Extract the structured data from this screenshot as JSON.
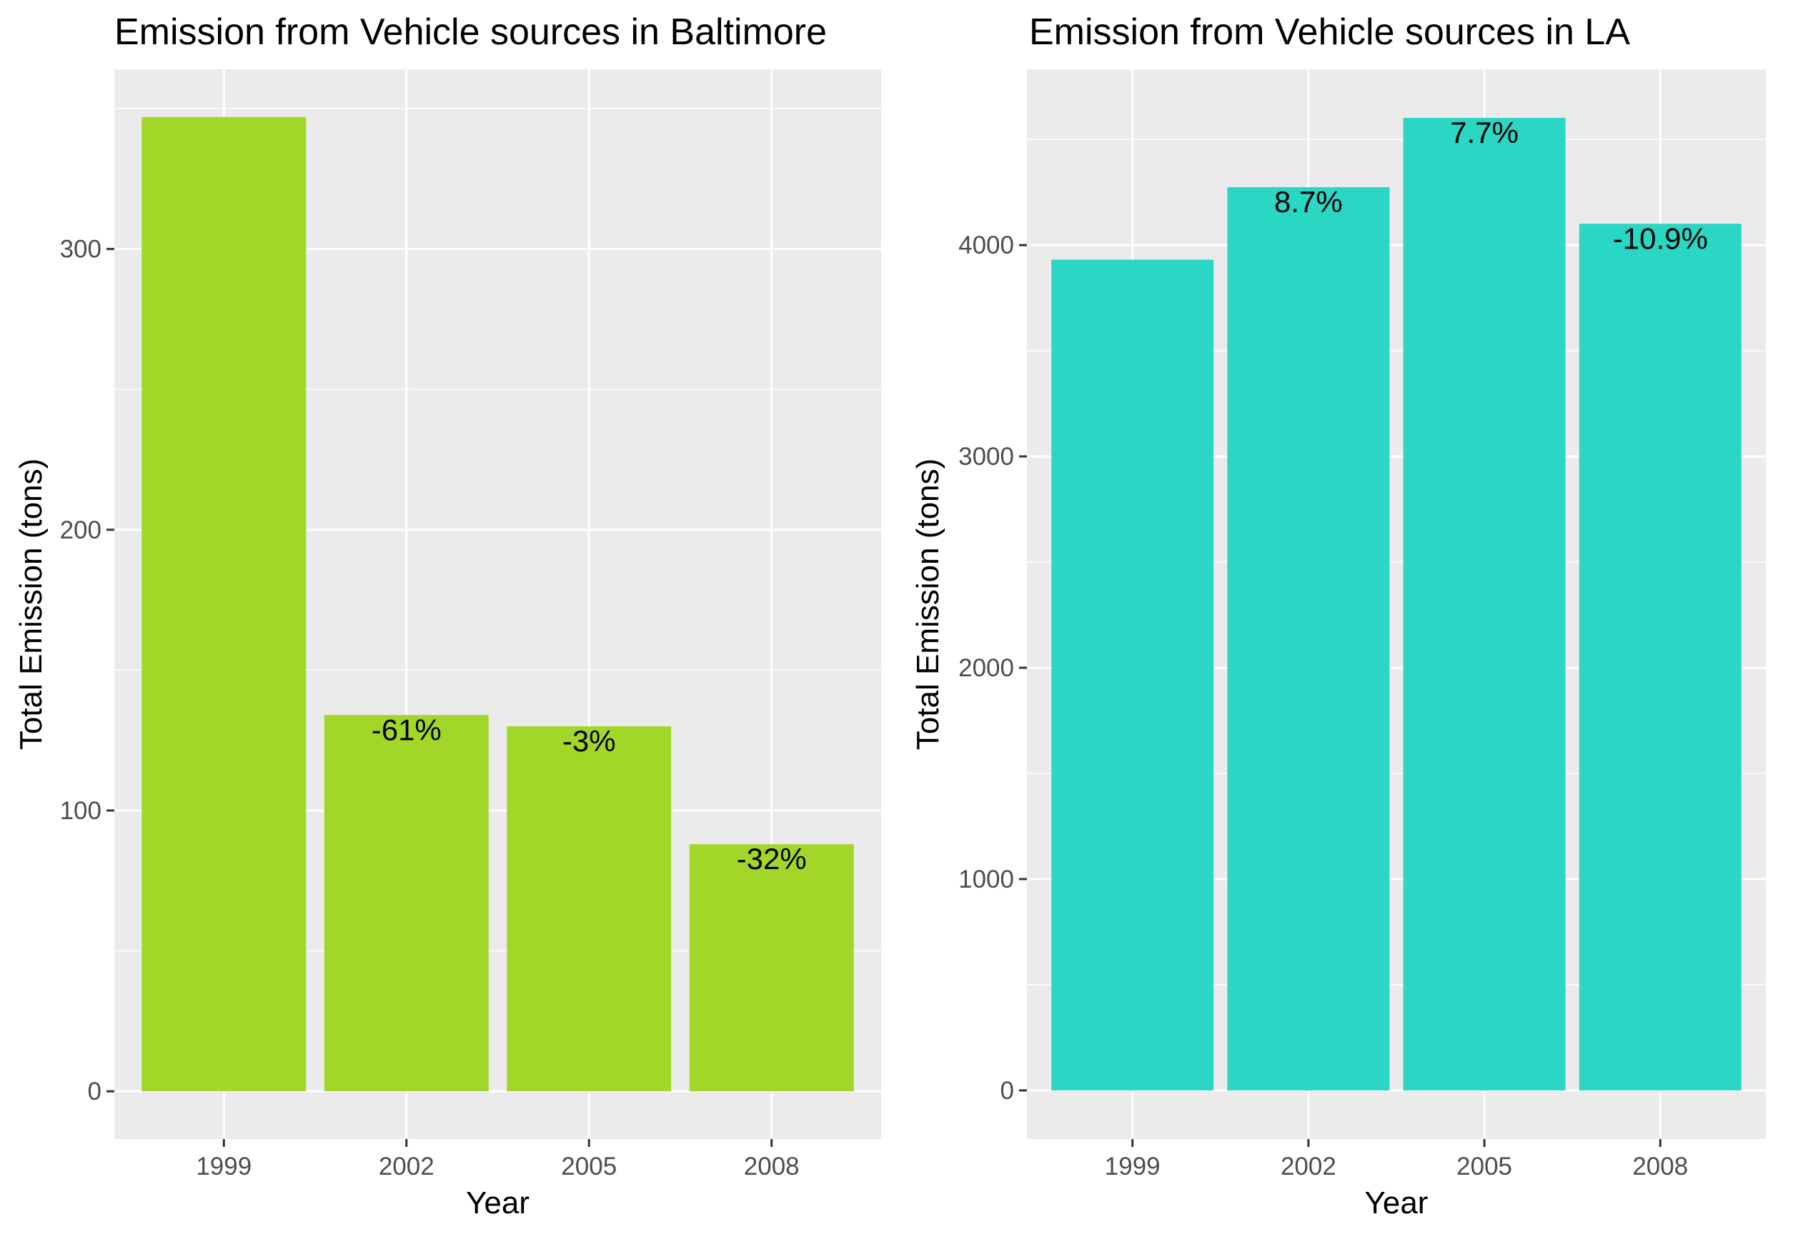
{
  "chart_data": [
    {
      "type": "bar",
      "title": "Emission from Vehicle sources in Baltimore",
      "xlabel": "Year",
      "ylabel": "Total Emission (tons)",
      "categories": [
        "1999",
        "2002",
        "2005",
        "2008"
      ],
      "values": [
        347,
        134,
        130,
        88
      ],
      "data_labels": [
        "",
        "-61%",
        "-3%",
        "-32%"
      ],
      "ylim": [
        -17,
        364
      ],
      "yticks": [
        0,
        100,
        200,
        300
      ],
      "ytick_labels": [
        "0",
        "100",
        "200",
        "300"
      ],
      "bar_color": "#a2d729",
      "panel_background": "#ebebeb",
      "grid_color": "#ffffff",
      "grid": true
    },
    {
      "type": "bar",
      "title": "Emission from Vehicle sources in LA",
      "xlabel": "Year",
      "ylabel": "Total Emission (tons)",
      "categories": [
        "1999",
        "2002",
        "2005",
        "2008"
      ],
      "values": [
        3931,
        4274,
        4602,
        4101
      ],
      "data_labels": [
        "",
        "8.7%",
        "7.7%",
        "-10.9%"
      ],
      "ylim": [
        -230,
        4832
      ],
      "yticks": [
        0,
        1000,
        2000,
        3000,
        4000
      ],
      "ytick_labels": [
        "0",
        "1000",
        "2000",
        "3000",
        "4000"
      ],
      "bar_color": "#2ad6c4",
      "panel_background": "#ebebeb",
      "grid_color": "#ffffff",
      "grid": true
    }
  ]
}
